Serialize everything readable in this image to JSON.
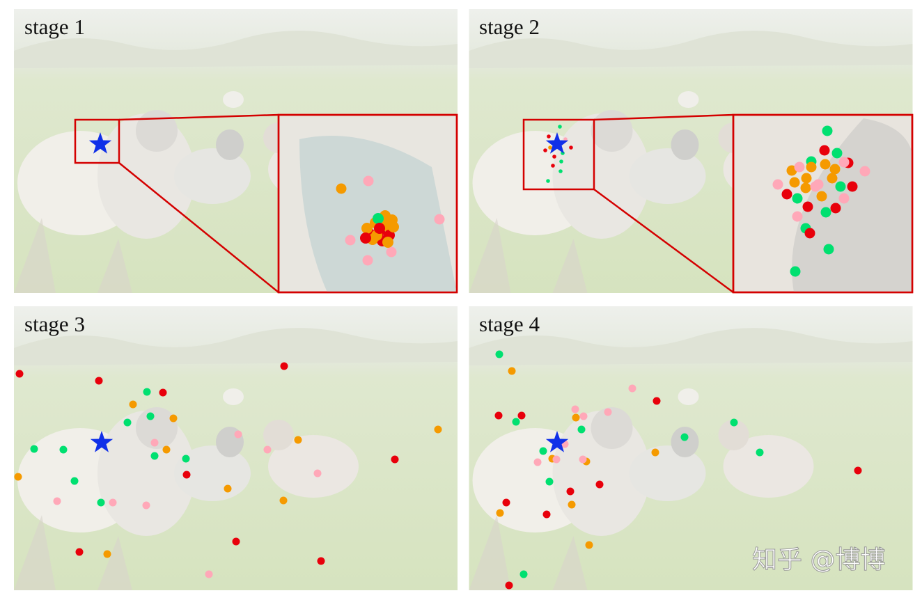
{
  "panels": [
    {
      "label": "stage 1"
    },
    {
      "label": "stage 2"
    },
    {
      "label": "stage 3"
    },
    {
      "label": "stage 4"
    }
  ],
  "watermark": "知乎 @博博"
}
